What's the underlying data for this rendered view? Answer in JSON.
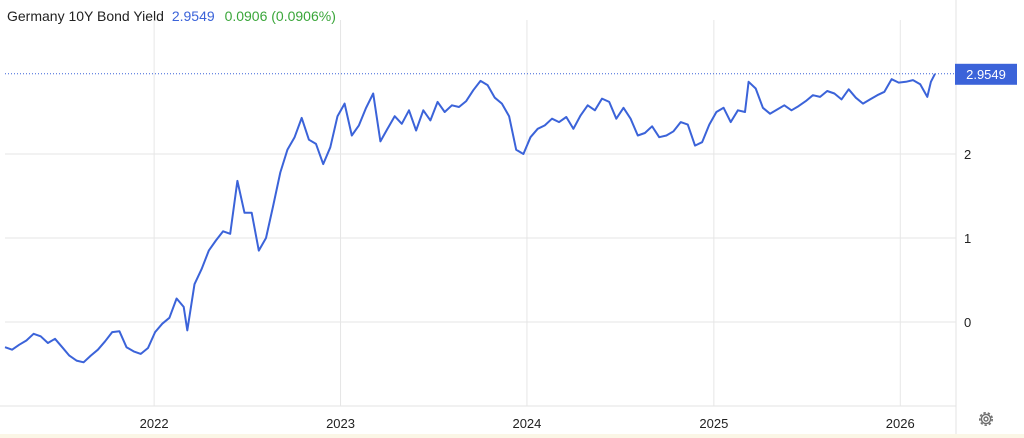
{
  "header": {
    "title": "Germany 10Y Bond Yield",
    "value": "2.9549",
    "change": "0.0906 (0.0906%)"
  },
  "colors": {
    "series": "#3b63d9",
    "change_positive": "#3aa63a",
    "grid": "#e6e6e6",
    "axis_text": "#222222",
    "last_price_badge": "#3b63d9"
  },
  "icons": {
    "settings": "gear-icon"
  },
  "chart_data": {
    "type": "line",
    "title": "Germany 10Y Bond Yield",
    "xlabel": "",
    "ylabel": "",
    "x_ticks": [
      "2022",
      "2023",
      "2024",
      "2025",
      "2026"
    ],
    "y_ticks": [
      "0",
      "1",
      "2"
    ],
    "ylim": [
      -1.0,
      3.1
    ],
    "xlim": [
      "2021-03-15",
      "2026-03-10"
    ],
    "grid": true,
    "y_axis_position": "right",
    "last_value_label": "2.9549",
    "series": [
      {
        "points": [
          [
            "2021-03-15",
            -0.3
          ],
          [
            "2021-03-29",
            -0.33
          ],
          [
            "2021-04-12",
            -0.27
          ],
          [
            "2021-04-26",
            -0.22
          ],
          [
            "2021-05-10",
            -0.14
          ],
          [
            "2021-05-24",
            -0.17
          ],
          [
            "2021-06-07",
            -0.25
          ],
          [
            "2021-06-21",
            -0.2
          ],
          [
            "2021-07-05",
            -0.3
          ],
          [
            "2021-07-19",
            -0.4
          ],
          [
            "2021-08-02",
            -0.46
          ],
          [
            "2021-08-16",
            -0.48
          ],
          [
            "2021-08-30",
            -0.4
          ],
          [
            "2021-09-13",
            -0.33
          ],
          [
            "2021-09-27",
            -0.23
          ],
          [
            "2021-10-11",
            -0.12
          ],
          [
            "2021-10-25",
            -0.11
          ],
          [
            "2021-11-08",
            -0.3
          ],
          [
            "2021-11-22",
            -0.35
          ],
          [
            "2021-12-06",
            -0.38
          ],
          [
            "2021-12-20",
            -0.31
          ],
          [
            "2022-01-03",
            -0.12
          ],
          [
            "2022-01-17",
            -0.02
          ],
          [
            "2022-01-31",
            0.05
          ],
          [
            "2022-02-14",
            0.28
          ],
          [
            "2022-02-28",
            0.18
          ],
          [
            "2022-03-07",
            -0.1
          ],
          [
            "2022-03-21",
            0.45
          ],
          [
            "2022-04-04",
            0.63
          ],
          [
            "2022-04-18",
            0.85
          ],
          [
            "2022-05-02",
            0.97
          ],
          [
            "2022-05-16",
            1.08
          ],
          [
            "2022-05-30",
            1.05
          ],
          [
            "2022-06-13",
            1.68
          ],
          [
            "2022-06-27",
            1.3
          ],
          [
            "2022-07-11",
            1.3
          ],
          [
            "2022-07-25",
            0.85
          ],
          [
            "2022-08-08",
            1.0
          ],
          [
            "2022-08-22",
            1.38
          ],
          [
            "2022-09-05",
            1.78
          ],
          [
            "2022-09-19",
            2.05
          ],
          [
            "2022-10-03",
            2.2
          ],
          [
            "2022-10-17",
            2.43
          ],
          [
            "2022-10-31",
            2.17
          ],
          [
            "2022-11-14",
            2.12
          ],
          [
            "2022-11-28",
            1.88
          ],
          [
            "2022-12-12",
            2.08
          ],
          [
            "2022-12-26",
            2.45
          ],
          [
            "2023-01-09",
            2.6
          ],
          [
            "2023-01-23",
            2.22
          ],
          [
            "2023-02-06",
            2.34
          ],
          [
            "2023-02-20",
            2.55
          ],
          [
            "2023-03-06",
            2.72
          ],
          [
            "2023-03-20",
            2.15
          ],
          [
            "2023-04-03",
            2.3
          ],
          [
            "2023-04-17",
            2.45
          ],
          [
            "2023-05-01",
            2.36
          ],
          [
            "2023-05-15",
            2.52
          ],
          [
            "2023-05-29",
            2.28
          ],
          [
            "2023-06-12",
            2.52
          ],
          [
            "2023-06-26",
            2.4
          ],
          [
            "2023-07-10",
            2.62
          ],
          [
            "2023-07-24",
            2.5
          ],
          [
            "2023-08-07",
            2.58
          ],
          [
            "2023-08-21",
            2.56
          ],
          [
            "2023-09-04",
            2.63
          ],
          [
            "2023-09-18",
            2.76
          ],
          [
            "2023-10-02",
            2.87
          ],
          [
            "2023-10-16",
            2.82
          ],
          [
            "2023-10-30",
            2.67
          ],
          [
            "2023-11-13",
            2.6
          ],
          [
            "2023-11-27",
            2.45
          ],
          [
            "2023-12-11",
            2.05
          ],
          [
            "2023-12-25",
            2.0
          ],
          [
            "2024-01-08",
            2.2
          ],
          [
            "2024-01-22",
            2.3
          ],
          [
            "2024-02-05",
            2.34
          ],
          [
            "2024-02-19",
            2.42
          ],
          [
            "2024-03-04",
            2.38
          ],
          [
            "2024-03-18",
            2.44
          ],
          [
            "2024-04-01",
            2.3
          ],
          [
            "2024-04-15",
            2.46
          ],
          [
            "2024-04-29",
            2.58
          ],
          [
            "2024-05-13",
            2.52
          ],
          [
            "2024-05-27",
            2.66
          ],
          [
            "2024-06-10",
            2.62
          ],
          [
            "2024-06-24",
            2.42
          ],
          [
            "2024-07-08",
            2.55
          ],
          [
            "2024-07-22",
            2.42
          ],
          [
            "2024-08-05",
            2.22
          ],
          [
            "2024-08-19",
            2.25
          ],
          [
            "2024-09-02",
            2.33
          ],
          [
            "2024-09-16",
            2.2
          ],
          [
            "2024-09-30",
            2.22
          ],
          [
            "2024-10-14",
            2.27
          ],
          [
            "2024-10-28",
            2.38
          ],
          [
            "2024-11-11",
            2.35
          ],
          [
            "2024-11-25",
            2.1
          ],
          [
            "2024-12-09",
            2.14
          ],
          [
            "2024-12-23",
            2.35
          ],
          [
            "2025-01-06",
            2.5
          ],
          [
            "2025-01-20",
            2.55
          ],
          [
            "2025-02-03",
            2.38
          ],
          [
            "2025-02-17",
            2.52
          ],
          [
            "2025-03-03",
            2.5
          ],
          [
            "2025-03-10",
            2.86
          ],
          [
            "2025-03-24",
            2.78
          ],
          [
            "2025-04-07",
            2.55
          ],
          [
            "2025-04-21",
            2.48
          ],
          [
            "2025-05-05",
            2.53
          ],
          [
            "2025-05-19",
            2.58
          ],
          [
            "2025-06-02",
            2.52
          ],
          [
            "2025-06-16",
            2.57
          ],
          [
            "2025-06-30",
            2.63
          ],
          [
            "2025-07-14",
            2.7
          ],
          [
            "2025-07-28",
            2.68
          ],
          [
            "2025-08-11",
            2.75
          ],
          [
            "2025-08-25",
            2.72
          ],
          [
            "2025-09-08",
            2.65
          ],
          [
            "2025-09-22",
            2.77
          ],
          [
            "2025-10-06",
            2.67
          ],
          [
            "2025-10-20",
            2.6
          ],
          [
            "2025-11-03",
            2.65
          ],
          [
            "2025-11-17",
            2.7
          ],
          [
            "2025-12-01",
            2.74
          ],
          [
            "2025-12-15",
            2.89
          ],
          [
            "2025-12-29",
            2.85
          ],
          [
            "2026-01-12",
            2.86
          ],
          [
            "2026-01-26",
            2.88
          ],
          [
            "2026-02-09",
            2.83
          ],
          [
            "2026-02-23",
            2.68
          ],
          [
            "2026-03-02",
            2.86
          ],
          [
            "2026-03-10",
            2.9549
          ]
        ]
      }
    ]
  }
}
